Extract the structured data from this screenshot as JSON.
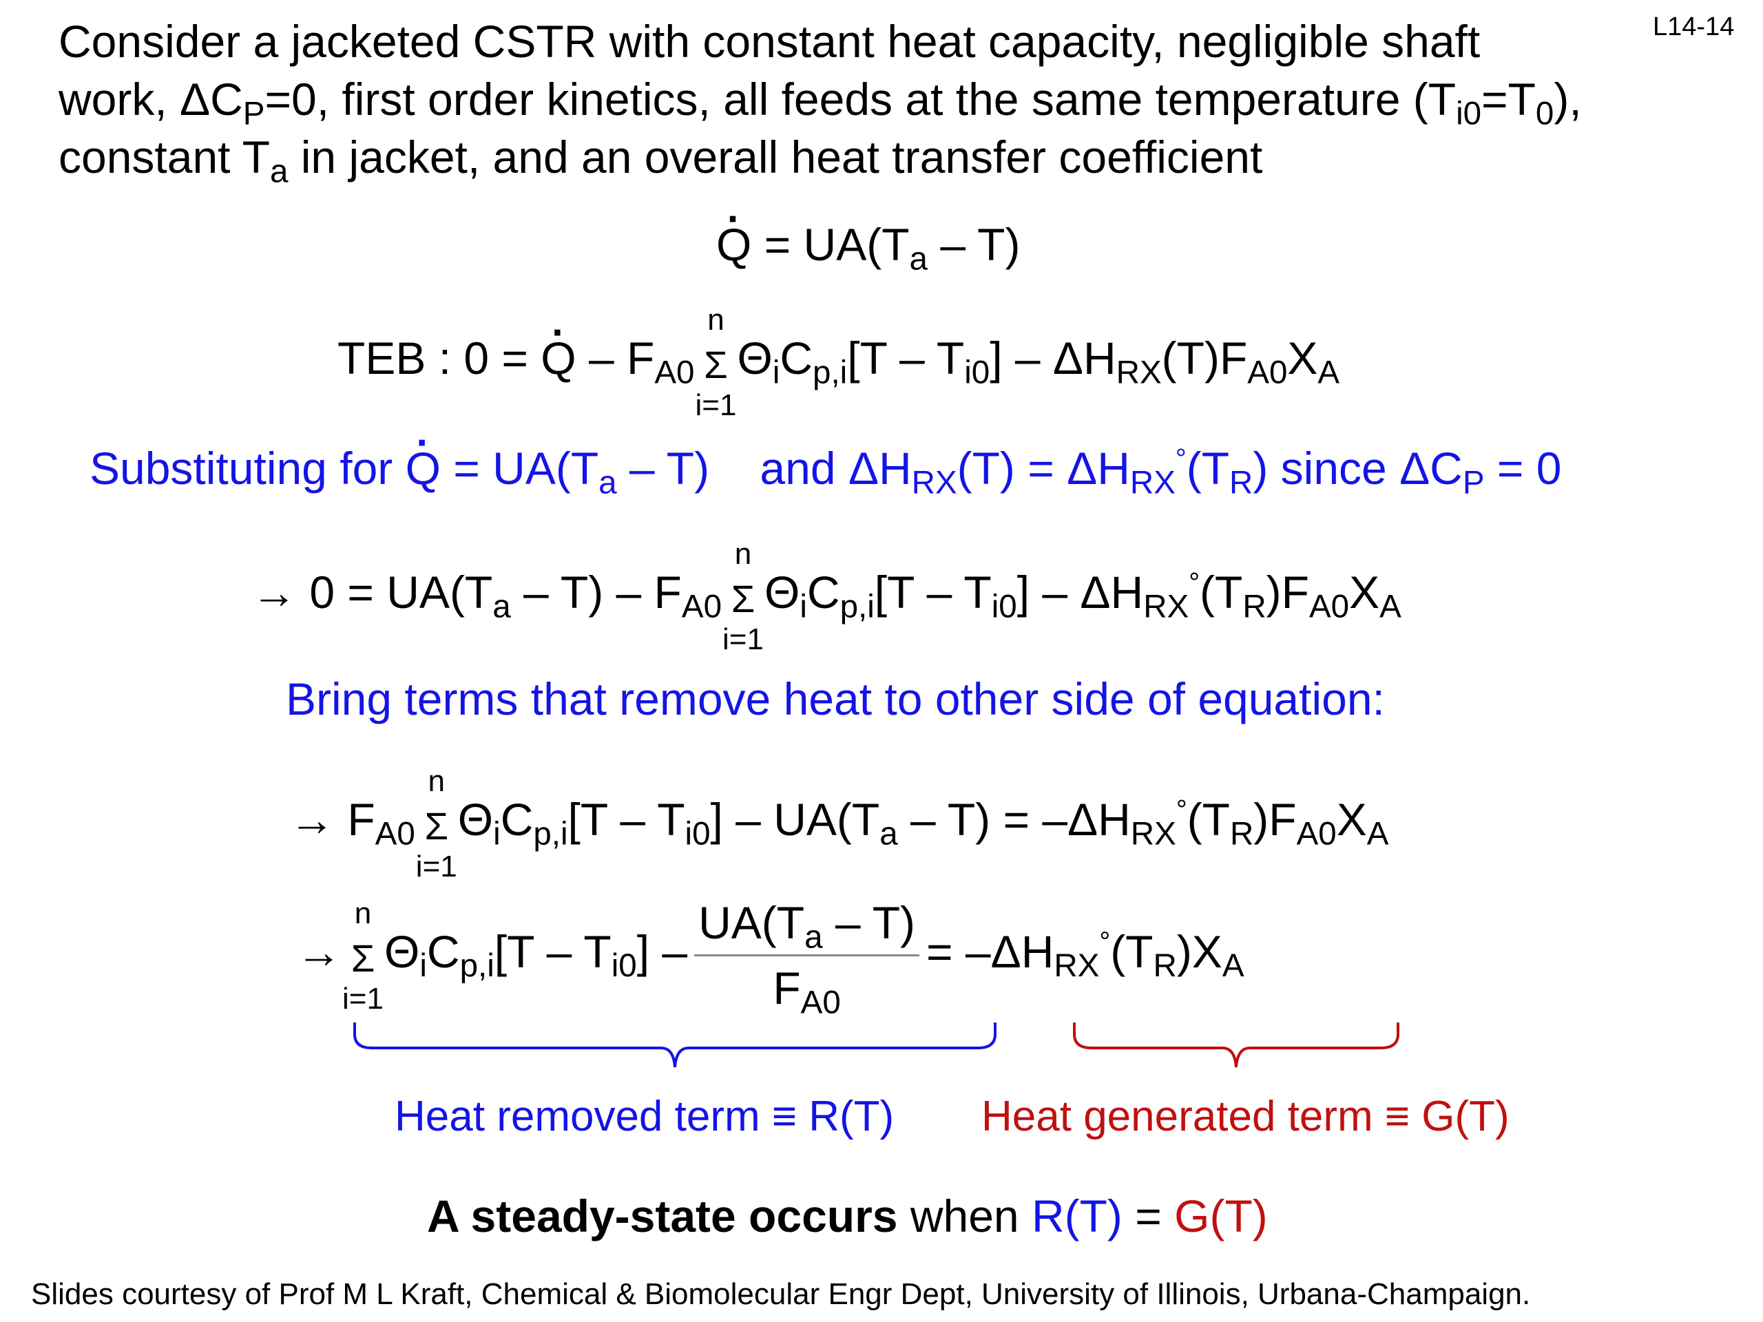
{
  "slide_number": "L14-14",
  "intro": {
    "line1": "Consider a jacketed CSTR with constant heat capacity, negligible shaft",
    "line2_a": "work, ΔC",
    "line2_sub1": "P",
    "line2_b": "=0, first order kinetics, all feeds at the same temperature (T",
    "line2_sub2": "i0",
    "line2_c": "=T",
    "line2_sub3": "0",
    "line2_d": "),",
    "line3_a": "constant T",
    "line3_sub": "a",
    "line3_b": " in jacket, and an overall heat transfer coefficient"
  },
  "eq1": {
    "q": "Q",
    "rhs": " = UA(T",
    "sub_a": "a",
    "tail": " – T)"
  },
  "eq2": {
    "lead": "TEB : 0 = ",
    "q": "Q",
    "part1": " – F",
    "sub_a0": "A0",
    "sum_top": "n",
    "sum_bot": "i=1",
    "theta": "Θ",
    "sub_i": "i",
    "cp": "C",
    "sub_pi": "p,i",
    "bracket": "[T – T",
    "sub_i0": "i0",
    "bracket_end": "] – ΔH",
    "sub_rx": "RX",
    "t_part": "(T)F",
    "sub_a0b": "A0",
    "x": "X",
    "sub_xa": "A"
  },
  "subst": {
    "a": "Substituting for ",
    "q": "Q",
    "b": " = UA(T",
    "sub_a": "a",
    "c": " – T)    and ΔH",
    "sub_rx": "RX",
    "d": "(T) = ΔH",
    "sub_rx2": "RX",
    "deg": "°",
    "e": "(T",
    "sub_r": "R",
    "f": ") since ΔC",
    "sub_p": "P",
    "g": " = 0"
  },
  "eq3": {
    "lead": "→ 0 = UA(T",
    "sub_a": "a",
    "p1": " – T) – F",
    "sub_a0": "A0",
    "sum_top": "n",
    "sum_bot": "i=1",
    "theta": "Θ",
    "sub_i": "i",
    "cp": "C",
    "sub_pi": "p,i",
    "bracket": "[T – T",
    "sub_i0": "i0",
    "p2": "] – ΔH",
    "sub_rx": "RX",
    "deg": "°",
    "p3": "(T",
    "sub_r": "R",
    "p4": ")F",
    "sub_a0b": "A0",
    "x": "X",
    "sub_xa": "A"
  },
  "bring": "Bring terms that remove heat to other side of equation:",
  "eq4": {
    "lead": "→ F",
    "sub_a0": "A0",
    "sum_top": "n",
    "sum_bot": "i=1",
    "theta": "Θ",
    "sub_i": "i",
    "cp": "C",
    "sub_pi": "p,i",
    "bracket": "[T – T",
    "sub_i0": "i0",
    "p1": "] – UA(T",
    "sub_a": "a",
    "p2": " – T) = –ΔH",
    "sub_rx": "RX",
    "deg": "°",
    "p3": "(T",
    "sub_r": "R",
    "p4": ")F",
    "sub_a0b": "A0",
    "x": "X",
    "sub_xa": "A"
  },
  "eq5": {
    "lead": "→",
    "sum_top": "n",
    "sum_bot": "i=1",
    "theta": "Θ",
    "sub_i": "i",
    "cp": "C",
    "sub_pi": "p,i",
    "bracket": "[T – T",
    "sub_i0": "i0",
    "p1": "] –",
    "num_a": "UA(T",
    "num_sub": "a",
    "num_b": " – T)",
    "den": "F",
    "den_sub": "A0",
    "p2": "= –ΔH",
    "sub_rx": "RX",
    "deg": "°",
    "p3": "(T",
    "sub_r": "R",
    "p4": ")X",
    "sub_xa": "A"
  },
  "labels": {
    "removed": "Heat removed term ≡ R(T)",
    "generated": "Heat generated term ≡ G(T)"
  },
  "steady": {
    "bold": "A steady-state occurs",
    "when": " when ",
    "r": "R(T)",
    "eq": " = ",
    "g": "G(T)"
  },
  "footer": "Slides courtesy of Prof M L Kraft, Chemical & Biomolecular Engr Dept, University of Illinois, Urbana-Champaign.",
  "colors": {
    "blue": "#1414e6",
    "red": "#c01010"
  }
}
